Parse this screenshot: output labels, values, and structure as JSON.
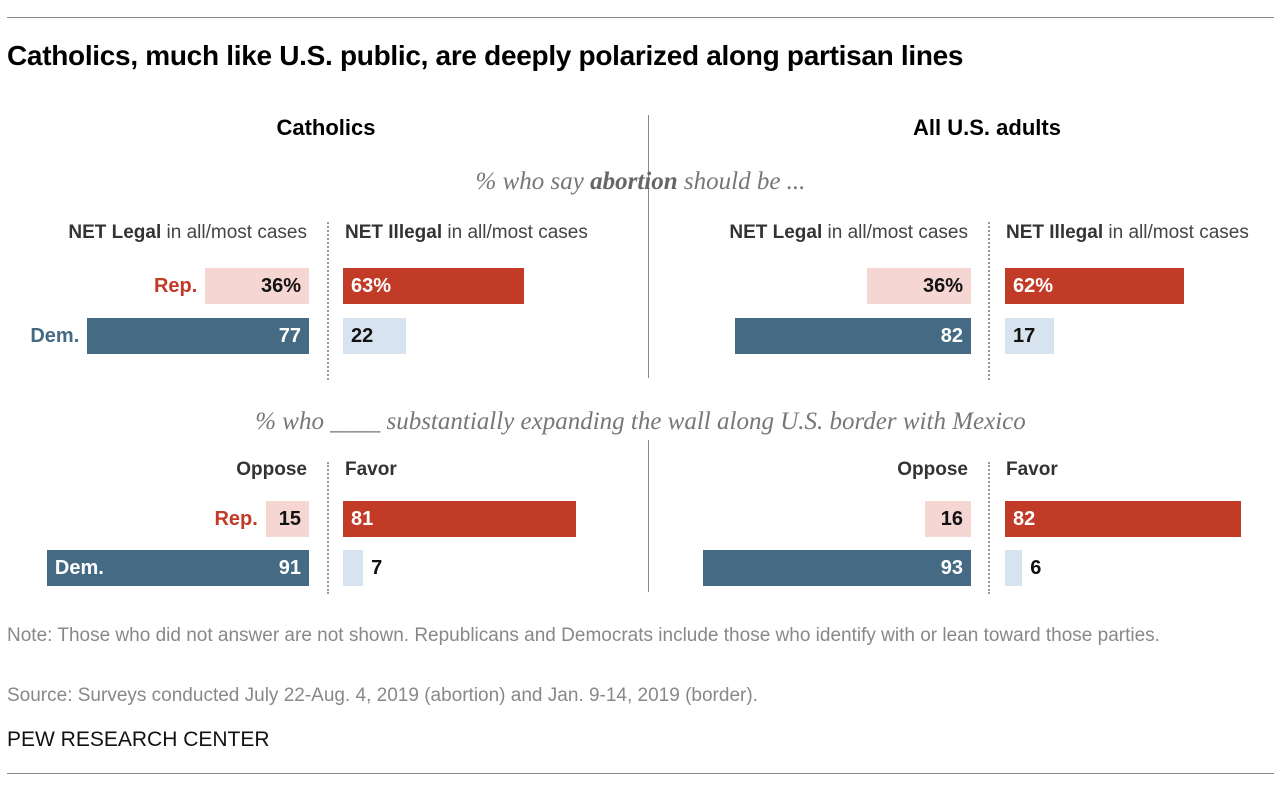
{
  "chart_data": {
    "type": "bar",
    "title": "Catholics, much like U.S. public, are deeply polarized along partisan lines",
    "panels": [
      "Catholics",
      "All U.S. adults"
    ],
    "colors": {
      "rep_strong": "#c13b27",
      "rep_light": "#f6d6d2",
      "dem_strong": "#456a83",
      "dem_light": "#d7e4ef",
      "rep_text": "#c13b27",
      "dem_text": "#456a83"
    },
    "sections": [
      {
        "subtitle": {
          "pre": "% who say ",
          "bold": "abortion",
          "post": " should be ..."
        },
        "left_header": {
          "bold": "NET Legal",
          "rest": " in all/most cases"
        },
        "right_header": {
          "bold": "NET Illegal",
          "rest": " in all/most cases"
        },
        "groups": [
          {
            "panel": "Catholics",
            "rows": [
              {
                "party": "Rep.",
                "left": 36,
                "left_label": "36%",
                "right": 63,
                "right_label": "63%"
              },
              {
                "party": "Dem.",
                "left": 77,
                "left_label": "77",
                "right": 22,
                "right_label": "22"
              }
            ]
          },
          {
            "panel": "All U.S. adults",
            "rows": [
              {
                "party": "Rep.",
                "left": 36,
                "left_label": "36%",
                "right": 62,
                "right_label": "62%"
              },
              {
                "party": "Dem.",
                "left": 82,
                "left_label": "82",
                "right": 17,
                "right_label": "17"
              }
            ]
          }
        ]
      },
      {
        "subtitle": {
          "pre": "% who ____ substantially expanding the wall along U.S. border with Mexico",
          "bold": "",
          "post": ""
        },
        "left_header": {
          "bold": "Oppose",
          "rest": ""
        },
        "right_header": {
          "bold": "Favor",
          "rest": ""
        },
        "groups": [
          {
            "panel": "Catholics",
            "rows": [
              {
                "party": "Rep.",
                "left": 15,
                "left_label": "15",
                "right": 81,
                "right_label": "81"
              },
              {
                "party": "Dem.",
                "left": 91,
                "left_label": "91",
                "right": 7,
                "right_label": "7"
              }
            ]
          },
          {
            "panel": "All U.S. adults",
            "rows": [
              {
                "party": "Rep.",
                "left": 16,
                "left_label": "16",
                "right": 82,
                "right_label": "82"
              },
              {
                "party": "Dem.",
                "left": 93,
                "left_label": "93",
                "right": 6,
                "right_label": "6"
              }
            ]
          }
        ]
      }
    ],
    "note": "Note: Those who did not answer are not shown. Republicans and Democrats include those who identify with or lean toward those parties.",
    "source": "Source: Surveys conducted July 22-Aug. 4, 2019 (abortion) and Jan. 9-14, 2019 (border).",
    "brand": "PEW RESEARCH CENTER"
  }
}
